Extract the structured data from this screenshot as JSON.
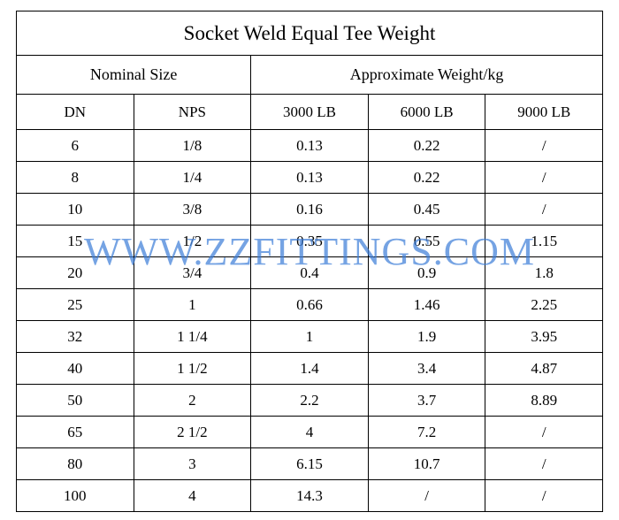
{
  "table": {
    "type": "table",
    "title": "Socket Weld Equal Tee Weight",
    "group_headers": {
      "left": "Nominal Size",
      "right": "Approximate Weight/kg"
    },
    "columns": [
      "DN",
      "NPS",
      "3000 LB",
      "6000 LB",
      "9000 LB"
    ],
    "rows": [
      [
        "6",
        "1/8",
        "0.13",
        "0.22",
        "/"
      ],
      [
        "8",
        "1/4",
        "0.13",
        "0.22",
        "/"
      ],
      [
        "10",
        "3/8",
        "0.16",
        "0.45",
        "/"
      ],
      [
        "15",
        "1/2",
        "0.35",
        "0.55",
        "1.15"
      ],
      [
        "20",
        "3/4",
        "0.4",
        "0.9",
        "1.8"
      ],
      [
        "25",
        "1",
        "0.66",
        "1.46",
        "2.25"
      ],
      [
        "32",
        "1 1/4",
        "1",
        "1.9",
        "3.95"
      ],
      [
        "40",
        "1 1/2",
        "1.4",
        "3.4",
        "4.87"
      ],
      [
        "50",
        "2",
        "2.2",
        "3.7",
        "8.89"
      ],
      [
        "65",
        "2 1/2",
        "4",
        "7.2",
        "/"
      ],
      [
        "80",
        "3",
        "6.15",
        "10.7",
        "/"
      ],
      [
        "100",
        "4",
        "14.3",
        "/",
        "/"
      ]
    ],
    "border_color": "#000000",
    "background_color": "#ffffff",
    "text_color": "#000000",
    "title_fontsize": 23,
    "header_fontsize": 18,
    "cell_fontsize": 17,
    "font_family": "Times New Roman"
  },
  "watermark": {
    "text": "WWW.ZZFITTINGS.COM",
    "color": "#3b7dd8",
    "opacity": 0.7,
    "fontsize": 44
  }
}
